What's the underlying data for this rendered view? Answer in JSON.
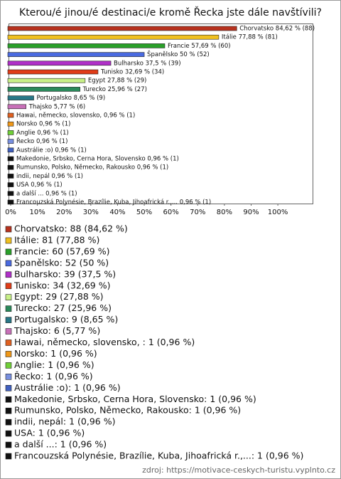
{
  "chart_data": {
    "type": "bar",
    "orientation": "horizontal",
    "title": "Kterou/é jinou/é destinaci/e kromě Řecka jste dále navštívili?",
    "categories": [
      "Chorvatsko",
      "Itálie",
      "Francie",
      "Španělsko",
      "Bulharsko",
      "Tunisko",
      "Egypt",
      "Turecko",
      "Portugalsko",
      "Thajsko",
      "Hawai, německo, slovensko, ",
      "Norsko",
      "Anglie",
      "Řecko",
      "Austrálie :o)",
      "Makedonie, Srbsko, Cerna Hora, Slovensko",
      "Rumunsko, Polsko, Německo, Rakousko",
      "indii, nepál",
      "USA",
      "a další ...",
      "Francouzská Polynésie, Brazílie, Kuba, Jihoafrická r.,..."
    ],
    "values": [
      84.62,
      77.88,
      57.69,
      50,
      37.5,
      32.69,
      27.88,
      25.96,
      8.65,
      5.77,
      0.96,
      0.96,
      0.96,
      0.96,
      0.96,
      0.96,
      0.96,
      0.96,
      0.96,
      0.96,
      0.96
    ],
    "value_labels": [
      "Chorvatsko 84,62 % (88)",
      "Itálie 77,88 % (81)",
      "Francie 57,69 % (60)",
      "Španělsko 50 % (52)",
      "Bulharsko 37,5 % (39)",
      "Tunisko 32,69 % (34)",
      "Egypt 27,88 % (29)",
      "Turecko 25,96 % (27)",
      "Portugalsko 8,65 % (9)",
      "Thajsko 5,77 % (6)",
      "Hawai, německo, slovensko,  0,96 % (1)",
      "Norsko 0,96 % (1)",
      "Anglie 0,96 % (1)",
      "Řecko 0,96 % (1)",
      "Austrálie :o) 0,96 % (1)",
      "Makedonie, Srbsko, Cerna Hora, Slovensko 0,96 % (1)",
      "Rumunsko, Polsko, Německo, Rakousko 0,96 % (1)",
      "indii, nepál 0,96 % (1)",
      "USA 0,96 % (1)",
      "a další ... 0,96 % (1)",
      "Francouzská Polynésie, Brazílie, Kuba, Jihoafrická r.,... 0,96 % (1)"
    ],
    "legend_labels": [
      "Chorvatsko: 88 (84,62 %)",
      "Itálie: 81 (77,88 %)",
      "Francie: 60 (57,69 %)",
      "Španělsko: 52 (50 %)",
      "Bulharsko: 39 (37,5 %)",
      "Tunisko: 34 (32,69 %)",
      "Egypt: 29 (27,88 %)",
      "Turecko: 27 (25,96 %)",
      "Portugalsko: 9 (8,65 %)",
      "Thajsko: 6 (5,77 %)",
      "Hawai, německo, slovensko, : 1 (0,96 %)",
      "Norsko: 1 (0,96 %)",
      "Anglie: 1 (0,96 %)",
      "Řecko: 1 (0,96 %)",
      "Austrálie :o): 1 (0,96 %)",
      "Makedonie, Srbsko, Cerna Hora, Slovensko: 1 (0,96 %)",
      "Rumunsko, Polsko, Německo, Rakousko: 1 (0,96 %)",
      "indii, nepál: 1 (0,96 %)",
      "USA: 1 (0,96 %)",
      "a další ...: 1 (0,96 %)",
      "Francouzská Polynésie, Brazílie, Kuba, Jihoafrická r.,...: 1 (0,96 %)"
    ],
    "colors": [
      "#b8321e",
      "#f0c020",
      "#2aa02a",
      "#4a6ae0",
      "#b030c8",
      "#e03c18",
      "#c8f088",
      "#2a8a5a",
      "#287888",
      "#c870b8",
      "#e06020",
      "#f09818",
      "#70d038",
      "#7890e0",
      "#4060c0",
      "#111111",
      "#111111",
      "#111111",
      "#111111",
      "#111111",
      "#111111"
    ],
    "xlim": [
      0,
      113
    ],
    "xticks": [
      {
        "value": 0,
        "label": "0%"
      },
      {
        "value": 10,
        "label": "10%"
      },
      {
        "value": 20,
        "label": "20%"
      },
      {
        "value": 30,
        "label": "30%"
      },
      {
        "value": 40,
        "label": "40%"
      },
      {
        "value": 50,
        "label": "50%"
      },
      {
        "value": 60,
        "label": "60%"
      },
      {
        "value": 70,
        "label": "70%"
      },
      {
        "value": 80,
        "label": "80%"
      },
      {
        "value": 90,
        "label": "90%"
      },
      {
        "value": 100,
        "label": "100%"
      }
    ],
    "source": "zdroj: https://motivace-ceskych-turistu.vyplnto.cz"
  }
}
